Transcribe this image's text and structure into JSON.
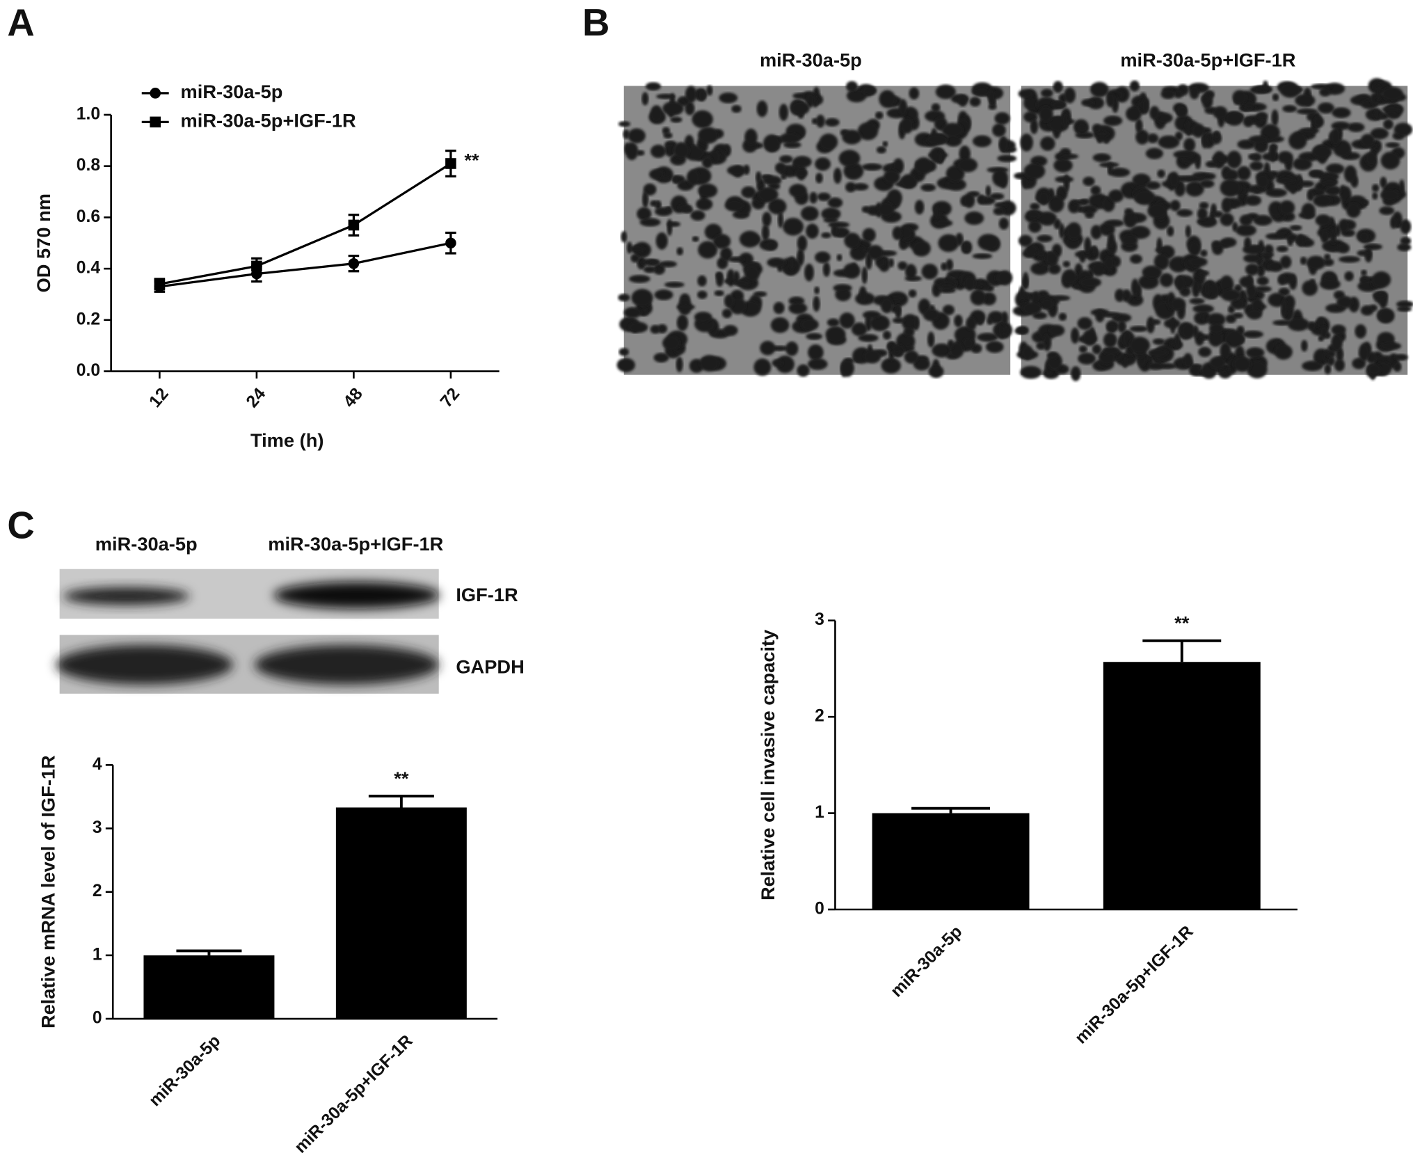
{
  "panel_labels": [
    "A",
    "B",
    "C"
  ],
  "micrographs": {
    "titles": [
      "miR-30a-5p",
      "miR-30a-5p+IGF-1R"
    ]
  },
  "western_blot": {
    "columns": [
      "miR-30a-5p",
      "miR-30a-5p+IGF-1R"
    ],
    "rows": [
      "IGF-1R",
      "GAPDH"
    ]
  },
  "chart_data": [
    {
      "type": "line",
      "xlabel": "Time (h)",
      "ylabel": "OD 570 nm",
      "categories": [
        "12",
        "24",
        "48",
        "72"
      ],
      "series": [
        {
          "name": "miR-30a-5p",
          "color": "#000000",
          "marker": "circle",
          "values": [
            0.33,
            0.38,
            0.42,
            0.5
          ],
          "errors": [
            0.02,
            0.03,
            0.03,
            0.04
          ],
          "significance": [
            null,
            null,
            null,
            null
          ]
        },
        {
          "name": "miR-30a-5p+IGF-1R",
          "color": "#000000",
          "marker": "square",
          "values": [
            0.34,
            0.41,
            0.57,
            0.81
          ],
          "errors": [
            0.02,
            0.03,
            0.04,
            0.05
          ],
          "significance": [
            null,
            null,
            null,
            "**"
          ]
        }
      ],
      "ylim": [
        0,
        1.0
      ],
      "yticks": [
        {
          "value": 0,
          "label": "0.0"
        },
        0.2,
        0.4,
        0.6,
        0.8,
        {
          "value": 1.0,
          "label": "1.0"
        }
      ],
      "legend": "top-left"
    },
    {
      "type": "bar",
      "ylabel": "Relative mRNA level of IGF-1R",
      "categories": [
        "miR-30a-5p",
        "miR-30a-5p+IGF-1R"
      ],
      "values": [
        1.0,
        3.33
      ],
      "errors": [
        0.07,
        0.18
      ],
      "significance": [
        null,
        "**"
      ],
      "color": "#000000",
      "ylim": [
        0,
        4
      ],
      "yticks": [
        0,
        1,
        2,
        3,
        4
      ]
    },
    {
      "type": "bar",
      "ylabel": "Relative cell invasive capacity",
      "categories": [
        "miR-30a-5p",
        "miR-30a-5p+IGF-1R"
      ],
      "values": [
        1.0,
        2.57
      ],
      "errors": [
        0.05,
        0.22
      ],
      "significance": [
        null,
        "**"
      ],
      "color": "#000000",
      "ylim": [
        0,
        3
      ],
      "yticks": [
        0,
        1,
        2,
        3
      ]
    }
  ]
}
